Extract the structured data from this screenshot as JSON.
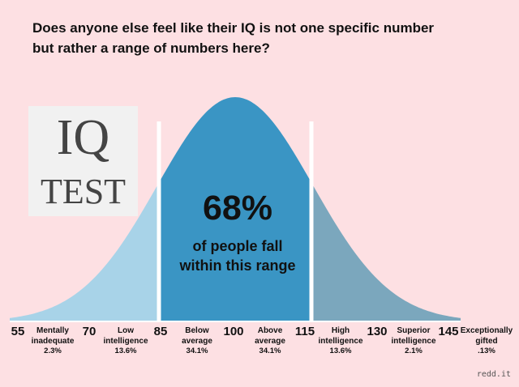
{
  "post": {
    "title_line1": "Does anyone else feel like their IQ is not one specific number",
    "title_line2": "but rather a range of numbers here?"
  },
  "logo": {
    "line1": "IQ",
    "line2": "TEST"
  },
  "highlight": {
    "percent": "68%",
    "line1": "of people fall",
    "line2": "within this range"
  },
  "chart_data": {
    "type": "area",
    "ticks": [
      "55",
      "70",
      "85",
      "100",
      "115",
      "130",
      "145"
    ],
    "bands": [
      {
        "name_line1": "Mentally",
        "name_line2": "inadequate",
        "share": "2.3%"
      },
      {
        "name_line1": "Low",
        "name_line2": "intelligence",
        "share": "13.6%"
      },
      {
        "name_line1": "Below",
        "name_line2": "average",
        "share": "34.1%"
      },
      {
        "name_line1": "Above",
        "name_line2": "average",
        "share": "34.1%"
      },
      {
        "name_line1": "High",
        "name_line2": "intelligence",
        "share": "13.6%"
      },
      {
        "name_line1": "Superior",
        "name_line2": "intelligence",
        "share": "2.1%"
      },
      {
        "name_line1": "Exceptionally",
        "name_line2": "gifted",
        "share": ".13%"
      }
    ],
    "colors": {
      "tails": "#a8d3e8",
      "center": "#3a95c4",
      "right": "#7ba7bd"
    }
  },
  "credit": "redd.it"
}
